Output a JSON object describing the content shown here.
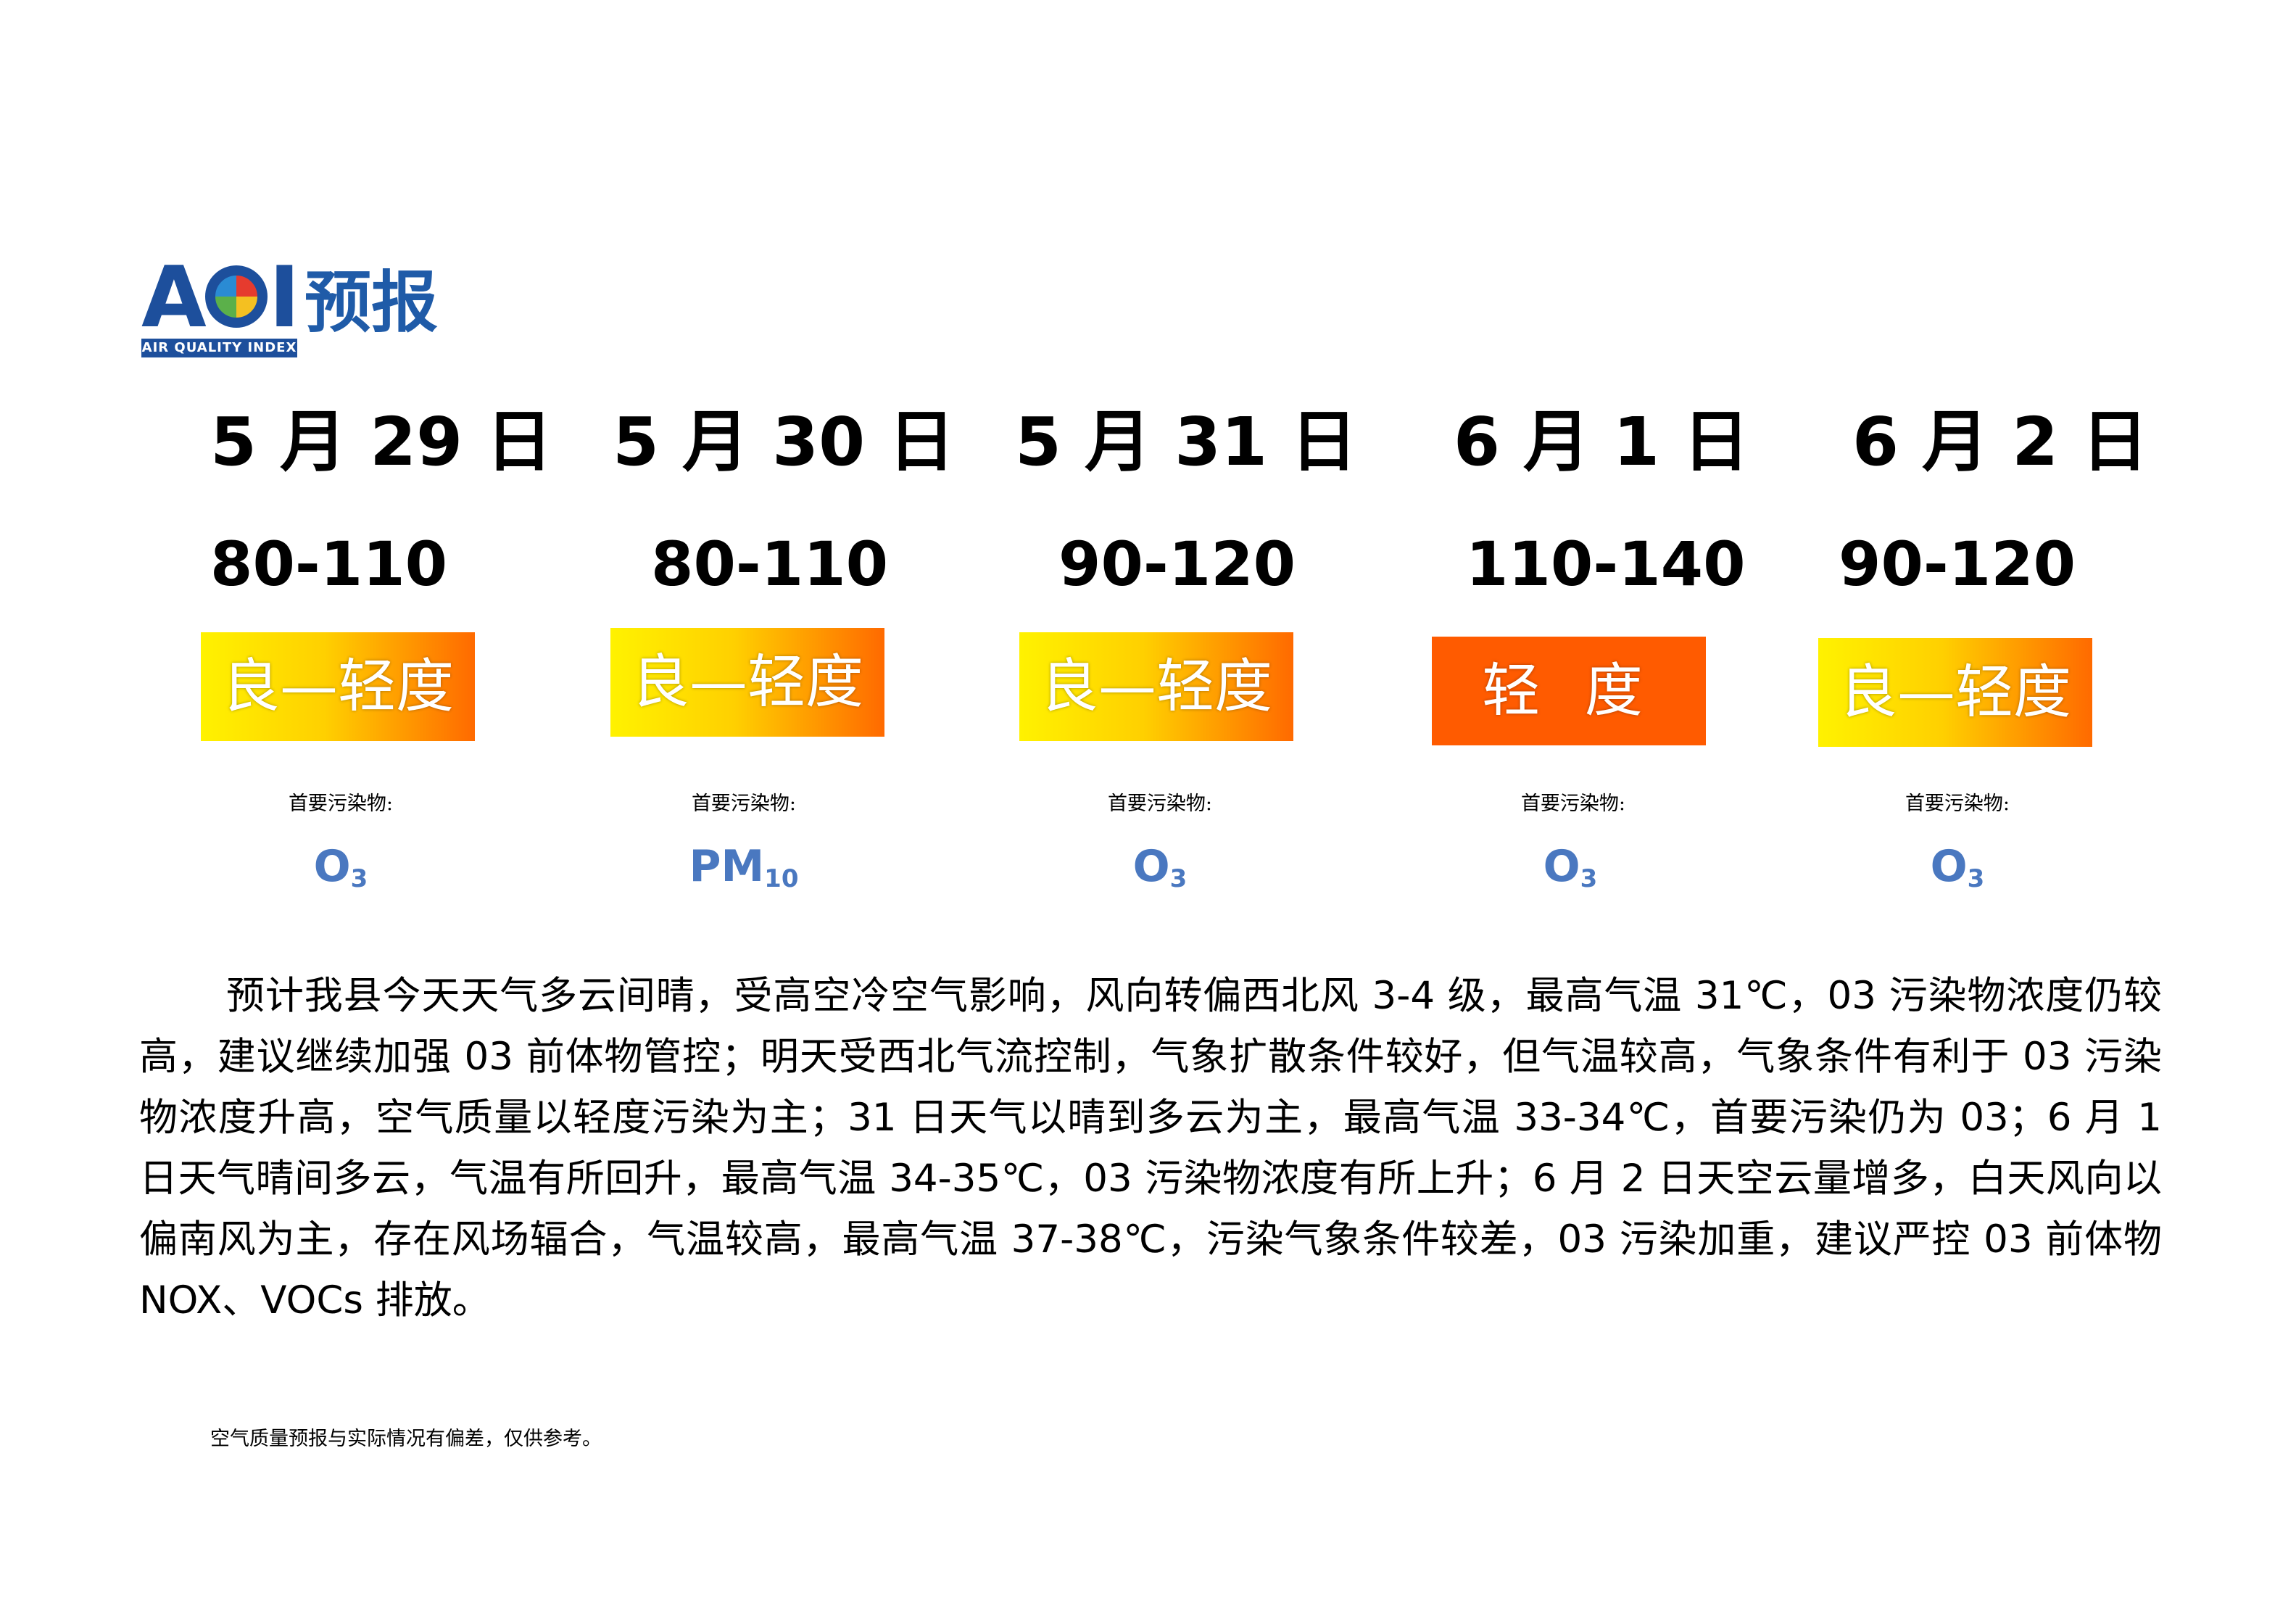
{
  "logo": {
    "aqi_left": "A",
    "aqi_right": "I",
    "subtitle": "AIR QUALITY INDEX",
    "title": "预报"
  },
  "forecast": [
    {
      "date": "5 月 29 日",
      "range": "80-110",
      "level": "良—轻度",
      "pollutant_label": "首要污染物:",
      "pollutant_main": "O",
      "pollutant_sub": "3"
    },
    {
      "date": "5 月 30 日",
      "range": "80-110",
      "level": "良—轻度",
      "pollutant_label": "首要污染物:",
      "pollutant_main": "PM",
      "pollutant_sub": "10"
    },
    {
      "date": "5 月 31 日",
      "range": "90-120",
      "level": "良—轻度",
      "pollutant_label": "首要污染物:",
      "pollutant_main": "O",
      "pollutant_sub": "3"
    },
    {
      "date": "6 月 1 日",
      "range": "110-140",
      "level": "轻 度",
      "pollutant_label": "首要污染物:",
      "pollutant_main": "O",
      "pollutant_sub": "3"
    },
    {
      "date": "6 月 2 日",
      "range": "90-120",
      "level": "良—轻度",
      "pollutant_label": "首要污染物:",
      "pollutant_main": "O",
      "pollutant_sub": "3"
    }
  ],
  "colors": {
    "level_gradient": [
      "#fff200",
      "#ff6a00"
    ],
    "level_moderate": "#ff5b00",
    "pollutant": "#4a78c0",
    "logo": "#1d4f9c"
  },
  "description": "预计我县今天天气多云间晴，受高空冷空气影响，风向转偏西北风 3-4 级，最高气温 31℃，03 污染物浓度仍较高，建议继续加强 03 前体物管控；明天受西北气流控制，气象扩散条件较好，但气温较高，气象条件有利于 03 污染物浓度升高，空气质量以轻度污染为主；31 日天气以晴到多云为主，最高气温 33-34℃，首要污染仍为 03；6 月 1 日天气晴间多云，气温有所回升，最高气温 34-35℃，03 污染物浓度有所上升；6 月 2 日天空云量增多，白天风向以偏南风为主，存在风场辐合，气温较高，最高气温 37-38℃，污染气象条件较差，03 污染加重，建议严控 03 前体物 NOX、VOCs 排放。",
  "disclaimer": "空气质量预报与实际情况有偏差，仅供参考。"
}
